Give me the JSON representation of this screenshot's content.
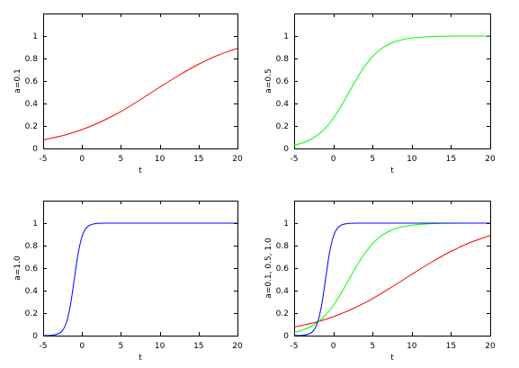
{
  "chart_data": [
    {
      "type": "line",
      "title": "",
      "xlabel": "t",
      "ylabel": "a=0.1",
      "xlim": [
        -5,
        20
      ],
      "ylim": [
        0,
        1.2
      ],
      "xticks": [
        -5,
        0,
        5,
        10,
        15,
        20
      ],
      "yticks": [
        0,
        0.2,
        0.4,
        0.6,
        0.8,
        1
      ],
      "xtick_labels": [
        "-5",
        "0",
        "5",
        "10",
        "15",
        "20"
      ],
      "ytick_labels": [
        "0",
        "0.2",
        "0.4",
        "0.6",
        "0.8",
        "1"
      ],
      "grid": false,
      "x": [
        -5,
        -2.5,
        0,
        2.5,
        5,
        7.5,
        10,
        12.5,
        15,
        17.5,
        20
      ],
      "series": [
        {
          "color": "#ff0000",
          "values": [
            0.076,
            0.114,
            0.168,
            0.24,
            0.329,
            0.434,
            0.545,
            0.652,
            0.749,
            0.829,
            0.891
          ]
        }
      ]
    },
    {
      "type": "line",
      "title": "",
      "xlabel": "t",
      "ylabel": "a=0.5",
      "xlim": [
        -5,
        20
      ],
      "ylim": [
        0,
        1.2
      ],
      "xticks": [
        -5,
        0,
        5,
        10,
        15,
        20
      ],
      "yticks": [
        0,
        0.2,
        0.4,
        0.6,
        0.8,
        1
      ],
      "xtick_labels": [
        "-5",
        "0",
        "5",
        "10",
        "15",
        "20"
      ],
      "ytick_labels": [
        "0",
        "0.2",
        "0.4",
        "0.6",
        "0.8",
        "1"
      ],
      "grid": false,
      "x": [
        -5,
        -4,
        -3,
        -2,
        -1,
        0,
        1,
        2,
        3,
        4,
        5,
        6,
        7,
        8,
        10,
        12.5,
        15,
        17.5,
        20
      ],
      "series": [
        {
          "color": "#00ff00",
          "values": [
            0.029,
            0.047,
            0.076,
            0.119,
            0.182,
            0.269,
            0.378,
            0.5,
            0.622,
            0.731,
            0.818,
            0.881,
            0.924,
            0.953,
            0.982,
            0.995,
            0.999,
            1.0,
            1.0
          ]
        }
      ]
    },
    {
      "type": "line",
      "title": "",
      "xlabel": "t",
      "ylabel": "a=1.0",
      "xlim": [
        -5,
        20
      ],
      "ylim": [
        0,
        1.2
      ],
      "xticks": [
        -5,
        0,
        5,
        10,
        15,
        20
      ],
      "yticks": [
        0,
        0.2,
        0.4,
        0.6,
        0.8,
        1
      ],
      "xtick_labels": [
        "-5",
        "0",
        "5",
        "10",
        "15",
        "20"
      ],
      "ytick_labels": [
        "0",
        "0.2",
        "0.4",
        "0.6",
        "0.8",
        "1"
      ],
      "grid": false,
      "x": [
        -5,
        -4,
        -3,
        -2.5,
        -2,
        -1.5,
        -1,
        -0.5,
        0,
        0.5,
        1,
        1.5,
        2,
        2.5,
        3,
        4,
        5,
        6,
        8,
        10,
        15,
        20
      ],
      "series": [
        {
          "color": "#0000ff",
          "values": [
            0.0003,
            0.002,
            0.018,
            0.047,
            0.119,
            0.269,
            0.5,
            0.731,
            0.881,
            0.953,
            0.982,
            0.993,
            0.998,
            0.999,
            1.0,
            1.0,
            1.0,
            1.0,
            1.0,
            1.0,
            1.0,
            1.0
          ]
        }
      ]
    },
    {
      "type": "line",
      "title": "",
      "xlabel": "t",
      "ylabel": "a=0.1, 0.5, 1.0",
      "xlim": [
        -5,
        20
      ],
      "ylim": [
        0,
        1.2
      ],
      "xticks": [
        -5,
        0,
        5,
        10,
        15,
        20
      ],
      "yticks": [
        0,
        0.2,
        0.4,
        0.6,
        0.8,
        1
      ],
      "xtick_labels": [
        "-5",
        "0",
        "5",
        "10",
        "15",
        "20"
      ],
      "ytick_labels": [
        "0",
        "0.2",
        "0.4",
        "0.6",
        "0.8",
        "1"
      ],
      "grid": false,
      "series": [
        {
          "color": "#ff0000",
          "x": [
            -5,
            -2.5,
            0,
            2.5,
            5,
            7.5,
            10,
            12.5,
            15,
            17.5,
            20
          ],
          "values": [
            0.076,
            0.114,
            0.168,
            0.24,
            0.329,
            0.434,
            0.545,
            0.652,
            0.749,
            0.829,
            0.891
          ]
        },
        {
          "color": "#00ff00",
          "x": [
            -5,
            -4,
            -3,
            -2,
            -1,
            0,
            1,
            2,
            3,
            4,
            5,
            6,
            7,
            8,
            10,
            12.5,
            15,
            17.5,
            20
          ],
          "values": [
            0.029,
            0.047,
            0.076,
            0.119,
            0.182,
            0.269,
            0.378,
            0.5,
            0.622,
            0.731,
            0.818,
            0.881,
            0.924,
            0.953,
            0.982,
            0.995,
            0.999,
            1.0,
            1.0
          ]
        },
        {
          "color": "#0000ff",
          "x": [
            -5,
            -4,
            -3,
            -2.5,
            -2,
            -1.5,
            -1,
            -0.5,
            0,
            0.5,
            1,
            1.5,
            2,
            2.5,
            3,
            4,
            5,
            6,
            8,
            10,
            15,
            20
          ],
          "values": [
            0.0003,
            0.002,
            0.018,
            0.047,
            0.119,
            0.269,
            0.5,
            0.731,
            0.881,
            0.953,
            0.982,
            0.993,
            0.998,
            0.999,
            1.0,
            1.0,
            1.0,
            1.0,
            1.0,
            1.0,
            1.0,
            1.0
          ]
        }
      ]
    }
  ]
}
